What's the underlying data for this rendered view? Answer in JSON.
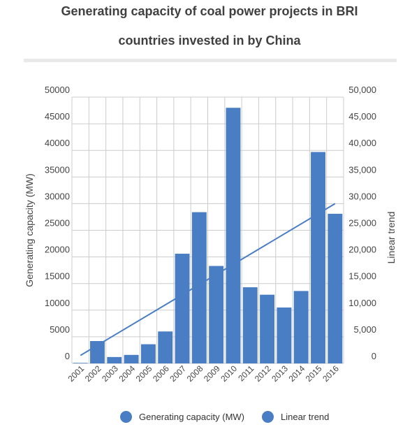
{
  "title": {
    "line1": "Generating capacity of coal power projects in BRI",
    "line2": "countries invested in by China"
  },
  "colors": {
    "bar": "#4a7ec4",
    "trend": "#4a7ec4",
    "grid": "#cccccc",
    "axis_text": "#444444"
  },
  "chart_data": {
    "type": "bar",
    "categories": [
      "2001",
      "2002",
      "2003",
      "2004",
      "2005",
      "2006",
      "2007",
      "2008",
      "2009",
      "2010",
      "2011",
      "2012",
      "2013",
      "2014",
      "2015",
      "2016"
    ],
    "series": [
      {
        "name": "Generating capacity (MW)",
        "values": [
          100,
          4200,
          1200,
          1600,
          3600,
          6000,
          20600,
          28400,
          18300,
          48000,
          14300,
          12900,
          10500,
          13600,
          39700,
          28100
        ]
      }
    ],
    "trend": {
      "name": "Linear trend",
      "start": 1500,
      "end": 30000
    },
    "ylabel": "Generating capacity (MW)",
    "y2label": "Linear trend",
    "ylim": [
      0,
      50000
    ],
    "y2lim": [
      0,
      50000
    ],
    "yticks": [
      "0",
      "5000",
      "10000",
      "15000",
      "20000",
      "25000",
      "30000",
      "35000",
      "40000",
      "45000",
      "50000"
    ],
    "y2ticks": [
      "0",
      "5,000",
      "10,000",
      "15,000",
      "20,000",
      "25,000",
      "30,000",
      "35,000",
      "40,000",
      "45,000",
      "50,000"
    ],
    "grid": true,
    "legend_position": "bottom"
  },
  "legend": {
    "items": [
      "Generating capacity (MW)",
      "Linear trend"
    ]
  }
}
